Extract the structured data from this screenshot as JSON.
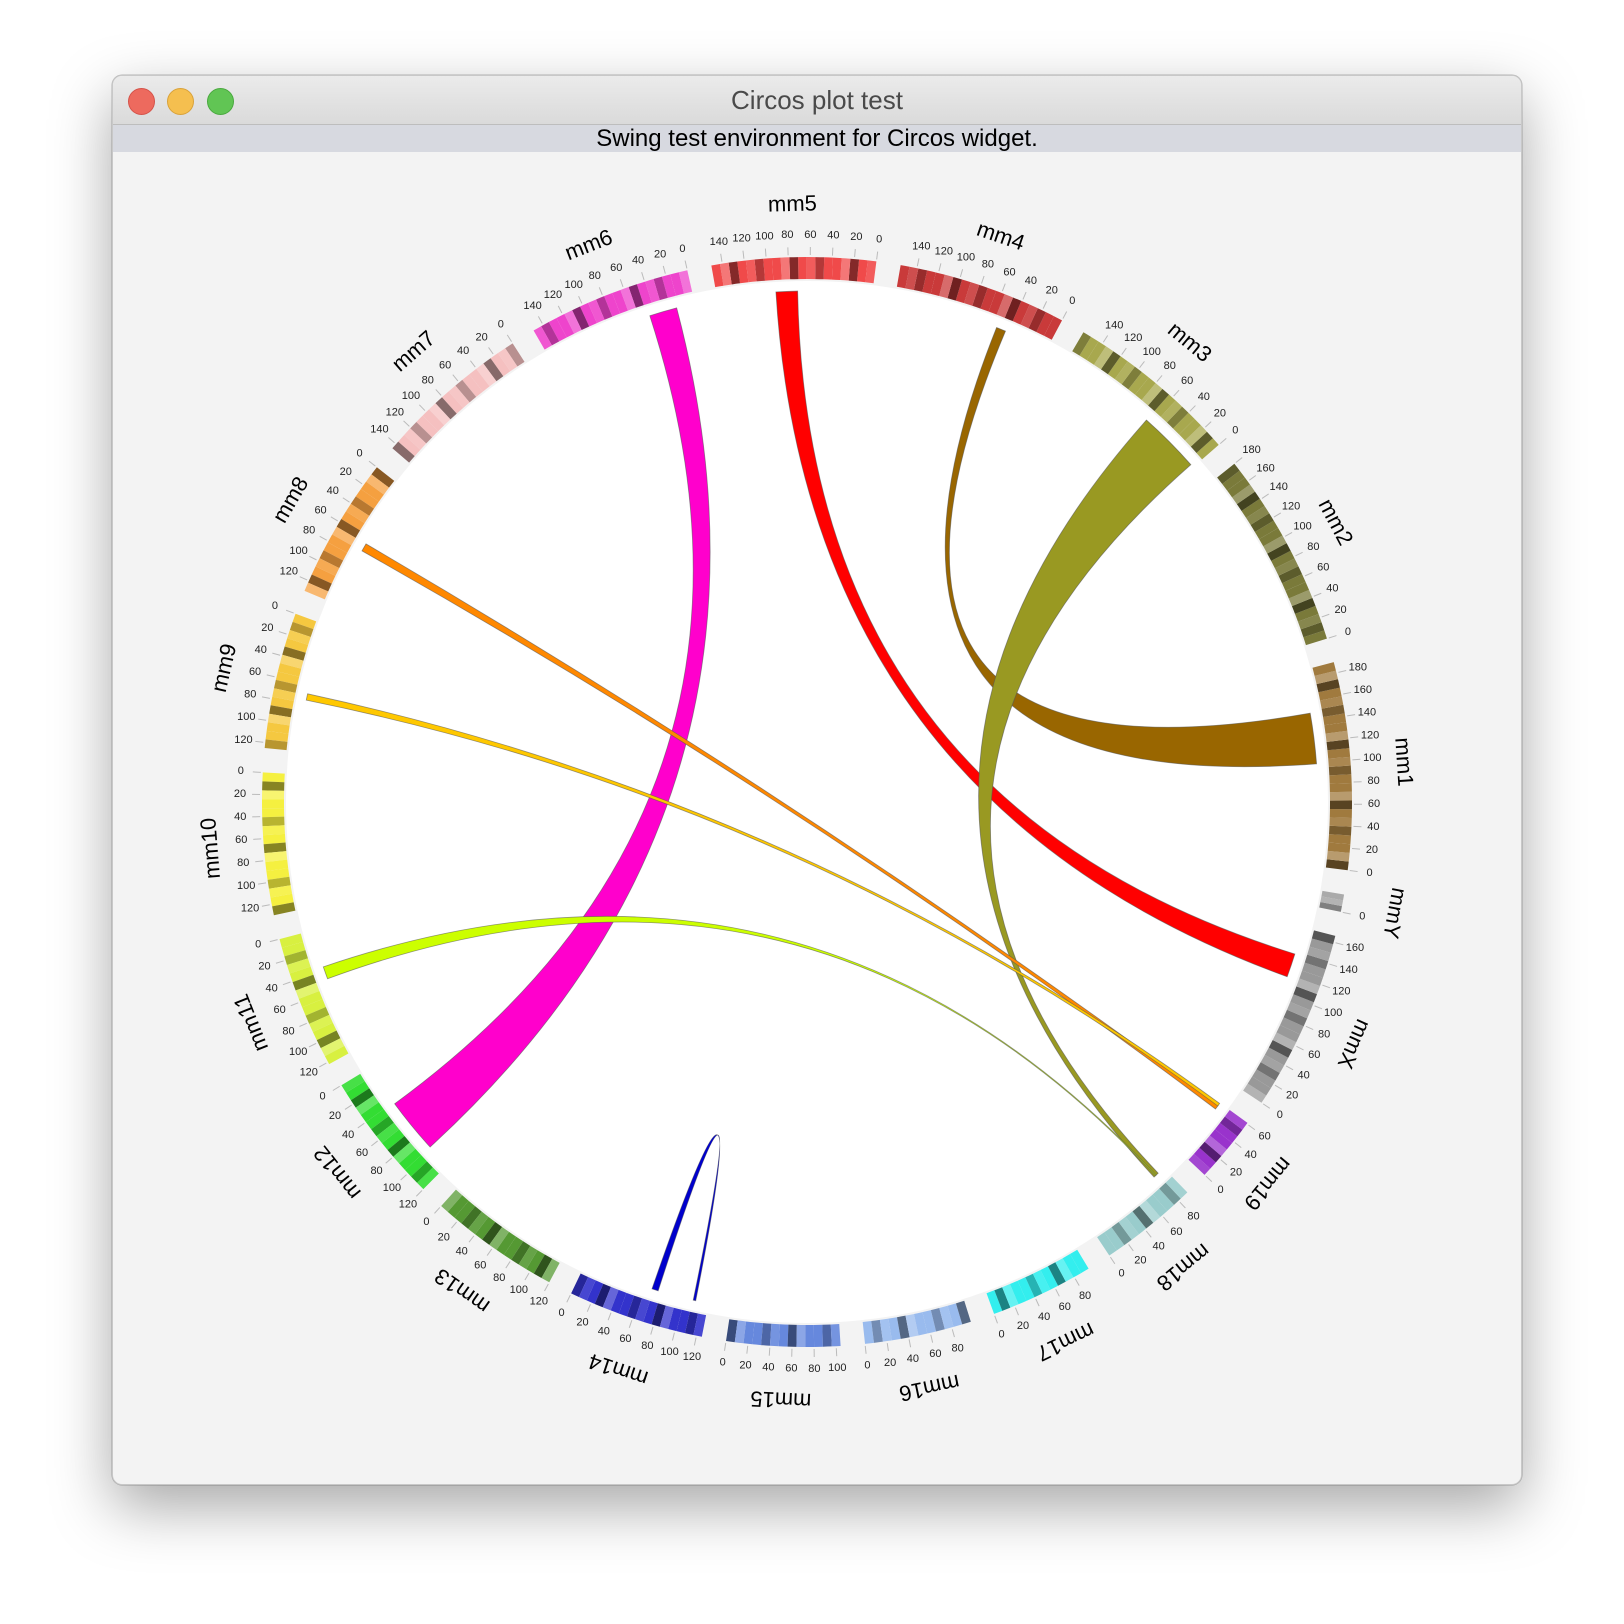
{
  "window": {
    "title": "Circos plot test",
    "subtitle": "Swing test environment for Circos widget."
  },
  "chart_data": {
    "type": "circos",
    "chromosomes": [
      {
        "name": "mm1",
        "length": 190,
        "color": "#a07a3e",
        "ticks": [
          0,
          20,
          40,
          60,
          80,
          100,
          120,
          140,
          160,
          180
        ]
      },
      {
        "name": "mm2",
        "length": 180,
        "color": "#7a7a3a",
        "ticks": [
          0,
          20,
          40,
          60,
          80,
          100,
          120,
          140,
          160,
          180
        ]
      },
      {
        "name": "mm3",
        "length": 160,
        "color": "#a8a84e",
        "ticks": [
          0,
          20,
          40,
          60,
          80,
          100,
          120,
          140
        ]
      },
      {
        "name": "mm4",
        "length": 155,
        "color": "#c93a3a",
        "ticks": [
          0,
          20,
          40,
          60,
          80,
          100,
          120,
          140
        ]
      },
      {
        "name": "mm5",
        "length": 150,
        "color": "#f04a4a",
        "ticks": [
          0,
          20,
          40,
          60,
          80,
          100,
          120,
          140
        ]
      },
      {
        "name": "mm6",
        "length": 150,
        "color": "#ee44cc",
        "ticks": [
          0,
          20,
          40,
          60,
          80,
          100,
          120,
          140
        ]
      },
      {
        "name": "mm7",
        "length": 145,
        "color": "#f5c0c0",
        "ticks": [
          0,
          20,
          40,
          60,
          80,
          100,
          120,
          140
        ]
      },
      {
        "name": "mm8",
        "length": 130,
        "color": "#f5a040",
        "ticks": [
          0,
          20,
          40,
          60,
          80,
          100,
          120
        ]
      },
      {
        "name": "mm9",
        "length": 125,
        "color": "#f5c840",
        "ticks": [
          0,
          20,
          40,
          60,
          80,
          100,
          120
        ]
      },
      {
        "name": "mm10",
        "length": 130,
        "color": "#f5f040",
        "ticks": [
          0,
          20,
          40,
          60,
          80,
          100,
          120
        ]
      },
      {
        "name": "mm11",
        "length": 122,
        "color": "#d8f040",
        "ticks": [
          0,
          20,
          40,
          60,
          80,
          100,
          120
        ]
      },
      {
        "name": "mm12",
        "length": 120,
        "color": "#33dd33",
        "ticks": [
          0,
          20,
          40,
          60,
          80,
          100,
          120
        ]
      },
      {
        "name": "mm13",
        "length": 120,
        "color": "#559933",
        "ticks": [
          0,
          20,
          40,
          60,
          80,
          100,
          120
        ]
      },
      {
        "name": "mm14",
        "length": 125,
        "color": "#3333cc",
        "ticks": [
          0,
          20,
          40,
          60,
          80,
          100,
          120
        ]
      },
      {
        "name": "mm15",
        "length": 104,
        "color": "#6688dd",
        "ticks": [
          0,
          20,
          40,
          60,
          80,
          100
        ]
      },
      {
        "name": "mm16",
        "length": 98,
        "color": "#99bbee",
        "ticks": [
          0,
          20,
          40,
          60,
          80
        ]
      },
      {
        "name": "mm17",
        "length": 95,
        "color": "#33eeee",
        "ticks": [
          0,
          20,
          40,
          60,
          80
        ]
      },
      {
        "name": "mm18",
        "length": 91,
        "color": "#99cccc",
        "ticks": [
          0,
          20,
          40,
          60,
          80
        ]
      },
      {
        "name": "mm19",
        "length": 61,
        "color": "#9933cc",
        "ticks": [
          0,
          20,
          40,
          60
        ]
      },
      {
        "name": "mmX",
        "length": 166,
        "color": "#999999",
        "ticks": [
          0,
          20,
          40,
          60,
          80,
          100,
          120,
          140,
          160
        ]
      },
      {
        "name": "mmY",
        "length": 16,
        "color": "#aaaaaa",
        "ticks": [
          0
        ]
      }
    ],
    "links": [
      {
        "from": "mm4",
        "to": "mm1",
        "color": "#996600"
      },
      {
        "from": "mm5",
        "to": "mmX",
        "color": "#ff0000"
      },
      {
        "from": "mm3",
        "to": "mm18",
        "color": "#999922"
      },
      {
        "from": "mm6",
        "to": "mm12",
        "color": "#ff00cc"
      },
      {
        "from": "mm8",
        "to": "mm19",
        "color": "#ff8800"
      },
      {
        "from": "mm9",
        "to": "mm19",
        "color": "#ffc800"
      },
      {
        "from": "mm11",
        "to": "mm18",
        "color": "#ccff00"
      },
      {
        "from": "mm14",
        "to": "mm14",
        "color": "#0000cc"
      }
    ]
  }
}
